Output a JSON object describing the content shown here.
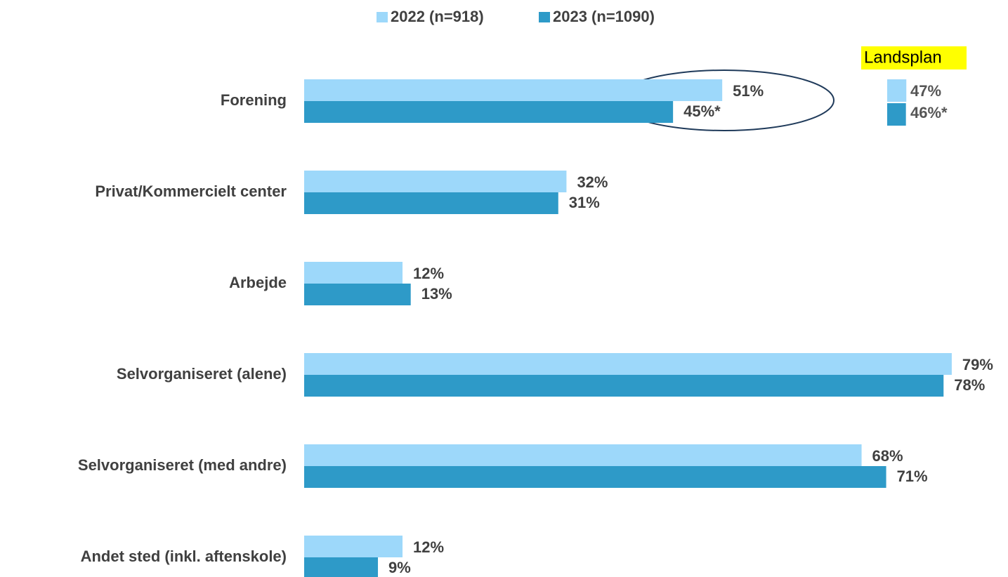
{
  "chart_data": {
    "type": "bar",
    "orientation": "horizontal",
    "categories": [
      "Forening",
      "Privat/Kommercielt center",
      "Arbejde",
      "Selvorganiseret (alene)",
      "Selvorganiseret (med andre)",
      "Andet sted (inkl. aftenskole)"
    ],
    "series": [
      {
        "name": "2022 (n=918)",
        "color": "#9dd8fa",
        "values": [
          51,
          32,
          12,
          79,
          68,
          12
        ],
        "value_labels": [
          "51%",
          "32%",
          "12%",
          "79%",
          "68%",
          "12%"
        ]
      },
      {
        "name": "2023 (n=1090)",
        "color": "#2e9ac8",
        "values": [
          45,
          31,
          13,
          78,
          71,
          9
        ],
        "value_labels": [
          "45%*",
          "31%",
          "13%",
          "78%",
          "71%",
          "9%"
        ]
      }
    ],
    "legend": "top",
    "landsplan": {
      "title": "Landsplan",
      "values": [
        47,
        46
      ],
      "value_labels": [
        "47%",
        "46%*"
      ]
    }
  }
}
